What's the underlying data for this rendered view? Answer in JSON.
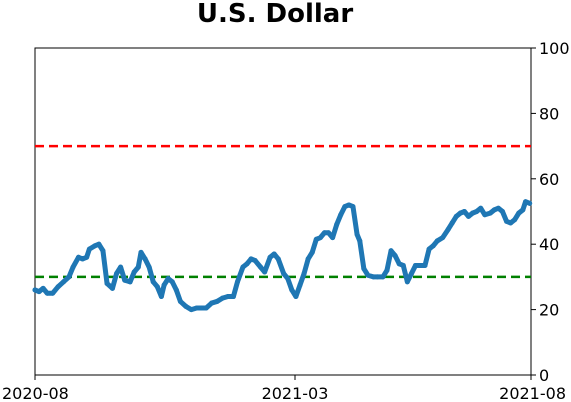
{
  "chart_data": {
    "type": "line",
    "title": "U.S. Dollar",
    "xlabel": "",
    "ylabel": "",
    "x_ticks": [
      "2020-08",
      "2021-03",
      "2021-08"
    ],
    "x_range": [
      "2020-08-01",
      "2021-08-01"
    ],
    "ylim": [
      0,
      100
    ],
    "y_ticks": [
      0,
      20,
      40,
      60,
      80,
      100
    ],
    "y_axis_side": "right",
    "grid": false,
    "reference_lines": [
      {
        "y": 70,
        "color": "#ff0000",
        "style": "dashed"
      },
      {
        "y": 30,
        "color": "#008000",
        "style": "dashed"
      }
    ],
    "series": [
      {
        "color": "#1f77b4",
        "points": [
          [
            "2020-08-01",
            26
          ],
          [
            "2020-08-04",
            25.5
          ],
          [
            "2020-08-07",
            26.5
          ],
          [
            "2020-08-10",
            25
          ],
          [
            "2020-08-14",
            25
          ],
          [
            "2020-08-18",
            27
          ],
          [
            "2020-08-22",
            28.5
          ],
          [
            "2020-08-26",
            30
          ],
          [
            "2020-08-29",
            33
          ],
          [
            "2020-09-02",
            36
          ],
          [
            "2020-09-05",
            35.5
          ],
          [
            "2020-09-08",
            36
          ],
          [
            "2020-09-10",
            38.5
          ],
          [
            "2020-09-14",
            39.5
          ],
          [
            "2020-09-17",
            40
          ],
          [
            "2020-09-20",
            38
          ],
          [
            "2020-09-23",
            28
          ],
          [
            "2020-09-27",
            26.5
          ],
          [
            "2020-09-30",
            31
          ],
          [
            "2020-10-03",
            33
          ],
          [
            "2020-10-06",
            29
          ],
          [
            "2020-10-10",
            28.5
          ],
          [
            "2020-10-13",
            31.5
          ],
          [
            "2020-10-16",
            33
          ],
          [
            "2020-10-18",
            37.5
          ],
          [
            "2020-10-21",
            35.5
          ],
          [
            "2020-10-24",
            33
          ],
          [
            "2020-10-27",
            28.5
          ],
          [
            "2020-10-30",
            27
          ],
          [
            "2020-11-02",
            24
          ],
          [
            "2020-11-04",
            27.5
          ],
          [
            "2020-11-07",
            29.5
          ],
          [
            "2020-11-10",
            28.5
          ],
          [
            "2020-11-13",
            26
          ],
          [
            "2020-11-16",
            22.5
          ],
          [
            "2020-11-20",
            21
          ],
          [
            "2020-11-24",
            20
          ],
          [
            "2020-11-28",
            20.5
          ],
          [
            "2020-12-01",
            20.5
          ],
          [
            "2020-12-05",
            20.5
          ],
          [
            "2020-12-09",
            22
          ],
          [
            "2020-12-13",
            22.5
          ],
          [
            "2020-12-17",
            23.5
          ],
          [
            "2020-12-21",
            24
          ],
          [
            "2020-12-25",
            24
          ],
          [
            "2020-12-28",
            28.5
          ],
          [
            "2021-01-01",
            33
          ],
          [
            "2021-01-04",
            34
          ],
          [
            "2021-01-07",
            35.5
          ],
          [
            "2021-01-10",
            35
          ],
          [
            "2021-01-14",
            33
          ],
          [
            "2021-01-17",
            31.5
          ],
          [
            "2021-01-21",
            36
          ],
          [
            "2021-01-24",
            37
          ],
          [
            "2021-01-27",
            35.5
          ],
          [
            "2021-01-31",
            31
          ],
          [
            "2021-02-03",
            29.5
          ],
          [
            "2021-02-06",
            26
          ],
          [
            "2021-02-09",
            24
          ],
          [
            "2021-02-12",
            27.5
          ],
          [
            "2021-02-15",
            31
          ],
          [
            "2021-02-18",
            35.5
          ],
          [
            "2021-02-21",
            37.5
          ],
          [
            "2021-02-24",
            41.5
          ],
          [
            "2021-02-27",
            42
          ],
          [
            "2021-03-02",
            43.5
          ],
          [
            "2021-03-05",
            43.5
          ],
          [
            "2021-03-08",
            42
          ],
          [
            "2021-03-11",
            46
          ],
          [
            "2021-03-14",
            49
          ],
          [
            "2021-03-17",
            51.5
          ],
          [
            "2021-03-20",
            52
          ],
          [
            "2021-03-23",
            51.5
          ],
          [
            "2021-03-26",
            43
          ],
          [
            "2021-03-28",
            41
          ],
          [
            "2021-03-31",
            32.5
          ],
          [
            "2021-04-03",
            30.5
          ],
          [
            "2021-04-07",
            30
          ],
          [
            "2021-04-10",
            30
          ],
          [
            "2021-04-14",
            30
          ],
          [
            "2021-04-17",
            32
          ],
          [
            "2021-04-20",
            38
          ],
          [
            "2021-04-23",
            36.5
          ],
          [
            "2021-04-26",
            34
          ],
          [
            "2021-04-29",
            33.5
          ],
          [
            "2021-05-02",
            28.5
          ],
          [
            "2021-05-05",
            31
          ],
          [
            "2021-05-08",
            33.5
          ],
          [
            "2021-05-12",
            33.5
          ],
          [
            "2021-05-15",
            33.5
          ],
          [
            "2021-05-18",
            38.5
          ],
          [
            "2021-05-21",
            39.5
          ],
          [
            "2021-05-24",
            41
          ],
          [
            "2021-05-28",
            42
          ],
          [
            "2021-06-01",
            44.5
          ],
          [
            "2021-06-04",
            46.5
          ],
          [
            "2021-06-07",
            48.5
          ],
          [
            "2021-06-10",
            49.5
          ],
          [
            "2021-06-13",
            50
          ],
          [
            "2021-06-16",
            48.5
          ],
          [
            "2021-06-19",
            49.5
          ],
          [
            "2021-06-22",
            50
          ],
          [
            "2021-06-25",
            51
          ],
          [
            "2021-06-28",
            49
          ],
          [
            "2021-07-02",
            49.5
          ],
          [
            "2021-07-05",
            50.5
          ],
          [
            "2021-07-08",
            51
          ],
          [
            "2021-07-11",
            50
          ],
          [
            "2021-07-14",
            47
          ],
          [
            "2021-07-17",
            46.5
          ],
          [
            "2021-07-20",
            47.5
          ],
          [
            "2021-07-23",
            49.5
          ],
          [
            "2021-07-26",
            50.5
          ],
          [
            "2021-07-28",
            53
          ],
          [
            "2021-07-31",
            52.5
          ]
        ]
      }
    ]
  },
  "colors": {
    "line": "#1f77b4",
    "upper_ref": "#ff0000",
    "lower_ref": "#008000",
    "axes": "#000000"
  }
}
